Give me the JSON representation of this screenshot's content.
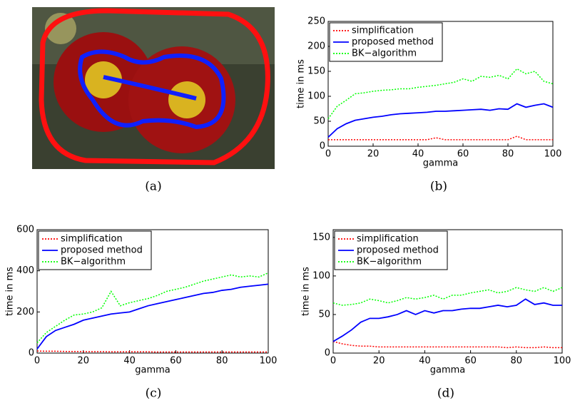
{
  "image_caption": "(a)",
  "chart_data": [
    {
      "type": "line",
      "caption": "(b)",
      "xlabel": "gamma",
      "ylabel": "time in ms",
      "x": [
        0,
        4,
        8,
        12,
        16,
        20,
        24,
        28,
        32,
        36,
        40,
        44,
        48,
        52,
        56,
        60,
        64,
        68,
        72,
        76,
        80,
        84,
        88,
        92,
        96,
        100
      ],
      "xlim": [
        0,
        100
      ],
      "xticks": [
        0,
        20,
        40,
        60,
        80,
        100
      ],
      "ylim": [
        0,
        250
      ],
      "yticks": [
        0,
        50,
        100,
        150,
        200,
        250
      ],
      "legend": "upper-left",
      "series": [
        {
          "name": "simplification",
          "color": "#ff0000",
          "line_style": "dotted",
          "values": [
            13,
            13,
            13,
            13,
            13,
            13,
            13,
            13,
            13,
            13,
            13,
            13,
            17,
            13,
            13,
            13,
            13,
            13,
            13,
            13,
            13,
            20,
            13,
            13,
            13,
            13
          ]
        },
        {
          "name": "proposed method",
          "color": "#0000ff",
          "line_style": "solid",
          "values": [
            18,
            35,
            45,
            52,
            55,
            58,
            60,
            63,
            65,
            66,
            67,
            68,
            70,
            70,
            71,
            72,
            73,
            74,
            72,
            75,
            74,
            85,
            78,
            82,
            85,
            78
          ]
        },
        {
          "name": "BK−algorithm",
          "color": "#00ff00",
          "line_style": "dotted",
          "values": [
            55,
            80,
            92,
            105,
            107,
            110,
            112,
            113,
            115,
            115,
            118,
            120,
            122,
            125,
            128,
            135,
            130,
            140,
            138,
            142,
            135,
            155,
            145,
            150,
            130,
            125
          ]
        }
      ]
    },
    {
      "type": "line",
      "caption": "(c)",
      "xlabel": "gamma",
      "ylabel": "time in ms",
      "x": [
        0,
        4,
        8,
        12,
        16,
        20,
        24,
        28,
        32,
        36,
        40,
        44,
        48,
        52,
        56,
        60,
        64,
        68,
        72,
        76,
        80,
        84,
        88,
        92,
        96,
        100
      ],
      "xlim": [
        0,
        100
      ],
      "xticks": [
        0,
        20,
        40,
        60,
        80,
        100
      ],
      "ylim": [
        0,
        600
      ],
      "yticks": [
        0,
        200,
        400,
        600
      ],
      "legend": "upper-left",
      "series": [
        {
          "name": "simplification",
          "color": "#ff0000",
          "line_style": "dotted",
          "values": [
            10,
            9,
            9,
            8,
            8,
            7,
            7,
            7,
            6,
            6,
            6,
            6,
            6,
            5,
            5,
            5,
            5,
            5,
            5,
            5,
            5,
            5,
            5,
            5,
            5,
            5
          ]
        },
        {
          "name": "proposed method",
          "color": "#0000ff",
          "line_style": "solid",
          "values": [
            20,
            80,
            110,
            125,
            140,
            160,
            170,
            180,
            190,
            195,
            200,
            215,
            230,
            240,
            250,
            260,
            270,
            280,
            290,
            295,
            305,
            310,
            320,
            325,
            330,
            335
          ]
        },
        {
          "name": "BK−algorithm",
          "color": "#00ff00",
          "line_style": "dotted",
          "values": [
            50,
            100,
            130,
            160,
            185,
            190,
            200,
            220,
            300,
            230,
            245,
            255,
            265,
            280,
            300,
            310,
            320,
            335,
            350,
            360,
            370,
            380,
            370,
            375,
            370,
            390
          ]
        }
      ]
    },
    {
      "type": "line",
      "caption": "(d)",
      "xlabel": "gamma",
      "ylabel": "time in ms",
      "x": [
        0,
        4,
        8,
        12,
        16,
        20,
        24,
        28,
        32,
        36,
        40,
        44,
        48,
        52,
        56,
        60,
        64,
        68,
        72,
        76,
        80,
        84,
        88,
        92,
        96,
        100
      ],
      "xlim": [
        0,
        100
      ],
      "xticks": [
        0,
        20,
        40,
        60,
        80,
        100
      ],
      "ylim": [
        0,
        160
      ],
      "yticks": [
        0,
        50,
        100,
        150
      ],
      "legend": "upper-left",
      "series": [
        {
          "name": "simplification",
          "color": "#ff0000",
          "line_style": "dotted",
          "values": [
            15,
            12,
            10,
            9,
            9,
            8,
            8,
            8,
            8,
            8,
            8,
            8,
            8,
            8,
            8,
            8,
            8,
            8,
            8,
            7,
            8,
            7,
            7,
            8,
            7,
            7
          ]
        },
        {
          "name": "proposed method",
          "color": "#0000ff",
          "line_style": "solid",
          "values": [
            15,
            22,
            30,
            40,
            45,
            45,
            47,
            50,
            55,
            50,
            55,
            52,
            55,
            55,
            57,
            58,
            58,
            60,
            62,
            60,
            62,
            70,
            63,
            65,
            62,
            62
          ]
        },
        {
          "name": "BK−algorithm",
          "color": "#00ff00",
          "line_style": "dotted",
          "values": [
            65,
            62,
            63,
            65,
            70,
            68,
            65,
            68,
            72,
            70,
            72,
            75,
            70,
            75,
            75,
            78,
            80,
            82,
            78,
            80,
            85,
            82,
            80,
            85,
            80,
            85
          ]
        }
      ]
    }
  ]
}
